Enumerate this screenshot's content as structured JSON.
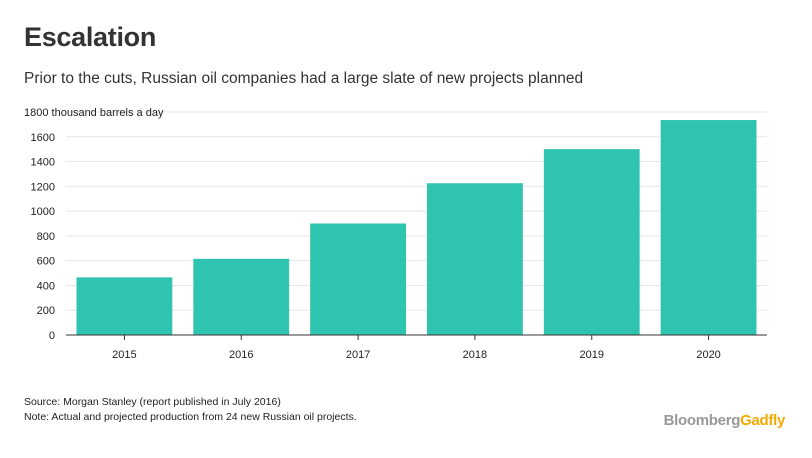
{
  "header": {
    "title": "Escalation",
    "subtitle": "Prior to the cuts, Russian oil companies had a large slate of new projects planned"
  },
  "chart_data": {
    "type": "bar",
    "categories": [
      "2015",
      "2016",
      "2017",
      "2018",
      "2019",
      "2020"
    ],
    "values": [
      465,
      615,
      900,
      1225,
      1500,
      1735
    ],
    "ylabel": "thousand barrels a day",
    "ylim": [
      0,
      1800
    ],
    "yticks": [
      0,
      200,
      400,
      600,
      800,
      1000,
      1200,
      1400,
      1600,
      1800
    ],
    "grid": true,
    "bar_color": "#2ec4b0",
    "grid_color": "#e6e6e6",
    "axis_color": "#333333"
  },
  "footer": {
    "source": "Source: Morgan Stanley (report published in July 2016)",
    "note": "Note: Actual and projected production from 24 new Russian oil projects.",
    "logo_part1": "Bloomberg",
    "logo_part2": "Gadfly",
    "logo_part1_color": "#999999",
    "logo_part2_color": "#f2a900"
  }
}
